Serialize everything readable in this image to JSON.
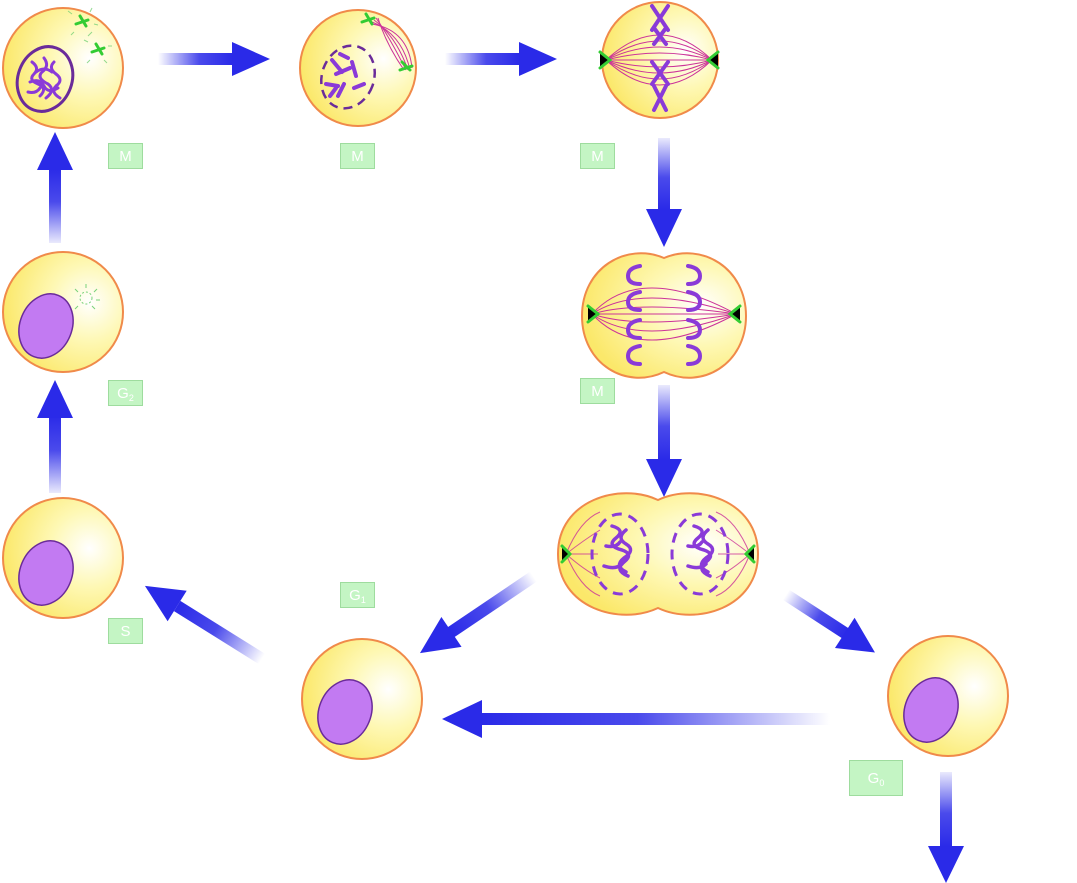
{
  "colors": {
    "cell_fill": "#fdf07a",
    "cell_outline": "#f08a4a",
    "nucleus": "#c27af2",
    "nucleus_outline": "#6a2b9a",
    "chromosome": "#8a3ad8",
    "spindle": "#cc3399",
    "centrosome": "#33cc33",
    "arrow": "#2a2ae8",
    "label_bg": "#c4f5c4"
  },
  "labels": [
    {
      "id": "m1",
      "text": "M",
      "sub": ""
    },
    {
      "id": "m2",
      "text": "M",
      "sub": ""
    },
    {
      "id": "m3",
      "text": "M",
      "sub": ""
    },
    {
      "id": "m4",
      "text": "M",
      "sub": ""
    },
    {
      "id": "g2",
      "text": "G",
      "sub": "2"
    },
    {
      "id": "s",
      "text": "S",
      "sub": ""
    },
    {
      "id": "g1",
      "text": "G",
      "sub": "1"
    },
    {
      "id": "g0",
      "text": "G",
      "sub": "0"
    }
  ]
}
